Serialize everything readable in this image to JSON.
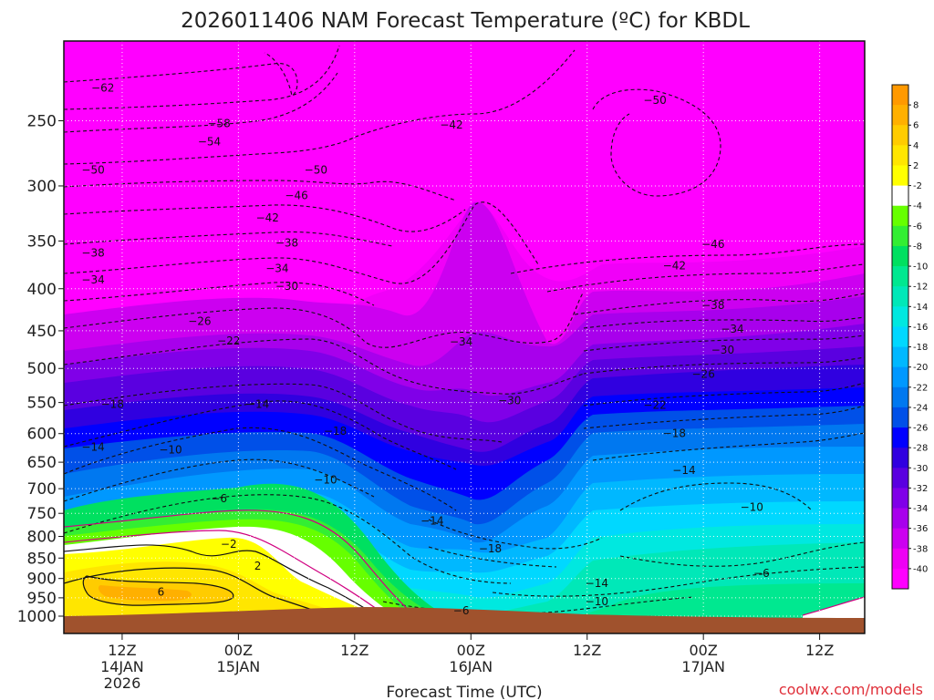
{
  "chart_data": {
    "type": "heatmap",
    "title": "2026011406 NAM Forecast Temperature (ºC) for KBDL",
    "xlabel": "Forecast Time (UTC)",
    "ylabel": "",
    "credit": "coolwx.com/models",
    "x_ticks": [
      {
        "hour": 6,
        "label": "12Z",
        "day": "14JAN",
        "year": "2026"
      },
      {
        "hour": 18,
        "label": "00Z",
        "day": "15JAN",
        "year": ""
      },
      {
        "hour": 30,
        "label": "12Z",
        "day": "",
        "year": ""
      },
      {
        "hour": 42,
        "label": "00Z",
        "day": "16JAN",
        "year": ""
      },
      {
        "hour": 54,
        "label": "12Z",
        "day": "",
        "year": ""
      },
      {
        "hour": 66,
        "label": "00Z",
        "day": "17JAN",
        "year": ""
      },
      {
        "hour": 78,
        "label": "12Z",
        "day": "",
        "year": ""
      }
    ],
    "xlim_hours": [
      0,
      84
    ],
    "y_ticks": [
      250,
      300,
      350,
      400,
      450,
      500,
      550,
      600,
      650,
      700,
      750,
      800,
      850,
      900,
      950,
      1000
    ],
    "ylim_hPa": [
      200,
      1000
    ],
    "y_scale": "log-pressure",
    "colorbar": {
      "labels": [
        "8",
        "6",
        "4",
        "2",
        "-2",
        "-4",
        "-6",
        "-8",
        "-10",
        "-12",
        "-14",
        "-16",
        "-18",
        "-20",
        "-22",
        "-24",
        "-26",
        "-28",
        "-30",
        "-32",
        "-34",
        "-36",
        "-38",
        "-40"
      ],
      "colors": [
        "#ff9900",
        "#ffb000",
        "#ffcc00",
        "#ffe600",
        "#ffff00",
        "#ffffff",
        "#66ff00",
        "#33ee33",
        "#00e060",
        "#00e890",
        "#00e8b8",
        "#00e8e0",
        "#00d8ff",
        "#00b8ff",
        "#0098ff",
        "#0078f0",
        "#0050e8",
        "#0000ff",
        "#3000e0",
        "#5a00e0",
        "#8000e8",
        "#a800ec",
        "#cc00f0",
        "#ee00f4",
        "#ff00ff"
      ]
    },
    "isotherms": [
      {
        "label": "-62",
        "hour": 4,
        "hPa": 228
      },
      {
        "label": "-58",
        "hour": 16,
        "hPa": 252
      },
      {
        "label": "-54",
        "hour": 15,
        "hPa": 265
      },
      {
        "label": "-50",
        "hour": 3,
        "hPa": 287
      },
      {
        "label": "-50",
        "hour": 26,
        "hPa": 287
      },
      {
        "label": "-46",
        "hour": 24,
        "hPa": 308
      },
      {
        "label": "-42",
        "hour": 21,
        "hPa": 328
      },
      {
        "label": "-42",
        "hour": 40,
        "hPa": 253
      },
      {
        "label": "-38",
        "hour": 3,
        "hPa": 362
      },
      {
        "label": "-38",
        "hour": 23,
        "hPa": 352
      },
      {
        "label": "-34",
        "hour": 3,
        "hPa": 390
      },
      {
        "label": "-34",
        "hour": 22,
        "hPa": 378
      },
      {
        "label": "-30",
        "hour": 23,
        "hPa": 397
      },
      {
        "label": "-26",
        "hour": 14,
        "hPa": 438
      },
      {
        "label": "-22",
        "hour": 17,
        "hPa": 463
      },
      {
        "label": "-18",
        "hour": 5,
        "hPa": 553
      },
      {
        "label": "-14",
        "hour": 3,
        "hPa": 623
      },
      {
        "label": "-14",
        "hour": 20,
        "hPa": 553
      },
      {
        "label": "-10",
        "hour": 11,
        "hPa": 628
      },
      {
        "label": "-6",
        "hour": 16,
        "hPa": 720
      },
      {
        "label": "-2",
        "hour": 17,
        "hPa": 818
      },
      {
        "label": "2",
        "hour": 20,
        "hPa": 869
      },
      {
        "label": "6",
        "hour": 10,
        "hPa": 935
      },
      {
        "label": "-18",
        "hour": 28,
        "hPa": 596
      },
      {
        "label": "-10",
        "hour": 27,
        "hPa": 683
      },
      {
        "label": "-14",
        "hour": 38,
        "hPa": 766
      },
      {
        "label": "-18",
        "hour": 44,
        "hPa": 828
      },
      {
        "label": "-30",
        "hour": 46,
        "hPa": 547
      },
      {
        "label": "-34",
        "hour": 41,
        "hPa": 464
      },
      {
        "label": "-6",
        "hour": 41,
        "hPa": 985
      },
      {
        "label": "-14",
        "hour": 55,
        "hPa": 912
      },
      {
        "label": "-10",
        "hour": 55,
        "hPa": 960
      },
      {
        "label": "-50",
        "hour": 61,
        "hPa": 236
      },
      {
        "label": "-46",
        "hour": 67,
        "hPa": 353
      },
      {
        "label": "-42",
        "hour": 63,
        "hPa": 375
      },
      {
        "label": "-38",
        "hour": 67,
        "hPa": 419
      },
      {
        "label": "-34",
        "hour": 69,
        "hPa": 448
      },
      {
        "label": "-30",
        "hour": 68,
        "hPa": 475
      },
      {
        "label": "-26",
        "hour": 66,
        "hPa": 508
      },
      {
        "label": "-22",
        "hour": 61,
        "hPa": 554
      },
      {
        "label": "-18",
        "hour": 63,
        "hPa": 600
      },
      {
        "label": "-14",
        "hour": 64,
        "hPa": 665
      },
      {
        "label": "-10",
        "hour": 71,
        "hPa": 737
      },
      {
        "label": "-6",
        "hour": 72,
        "hPa": 887
      }
    ]
  }
}
